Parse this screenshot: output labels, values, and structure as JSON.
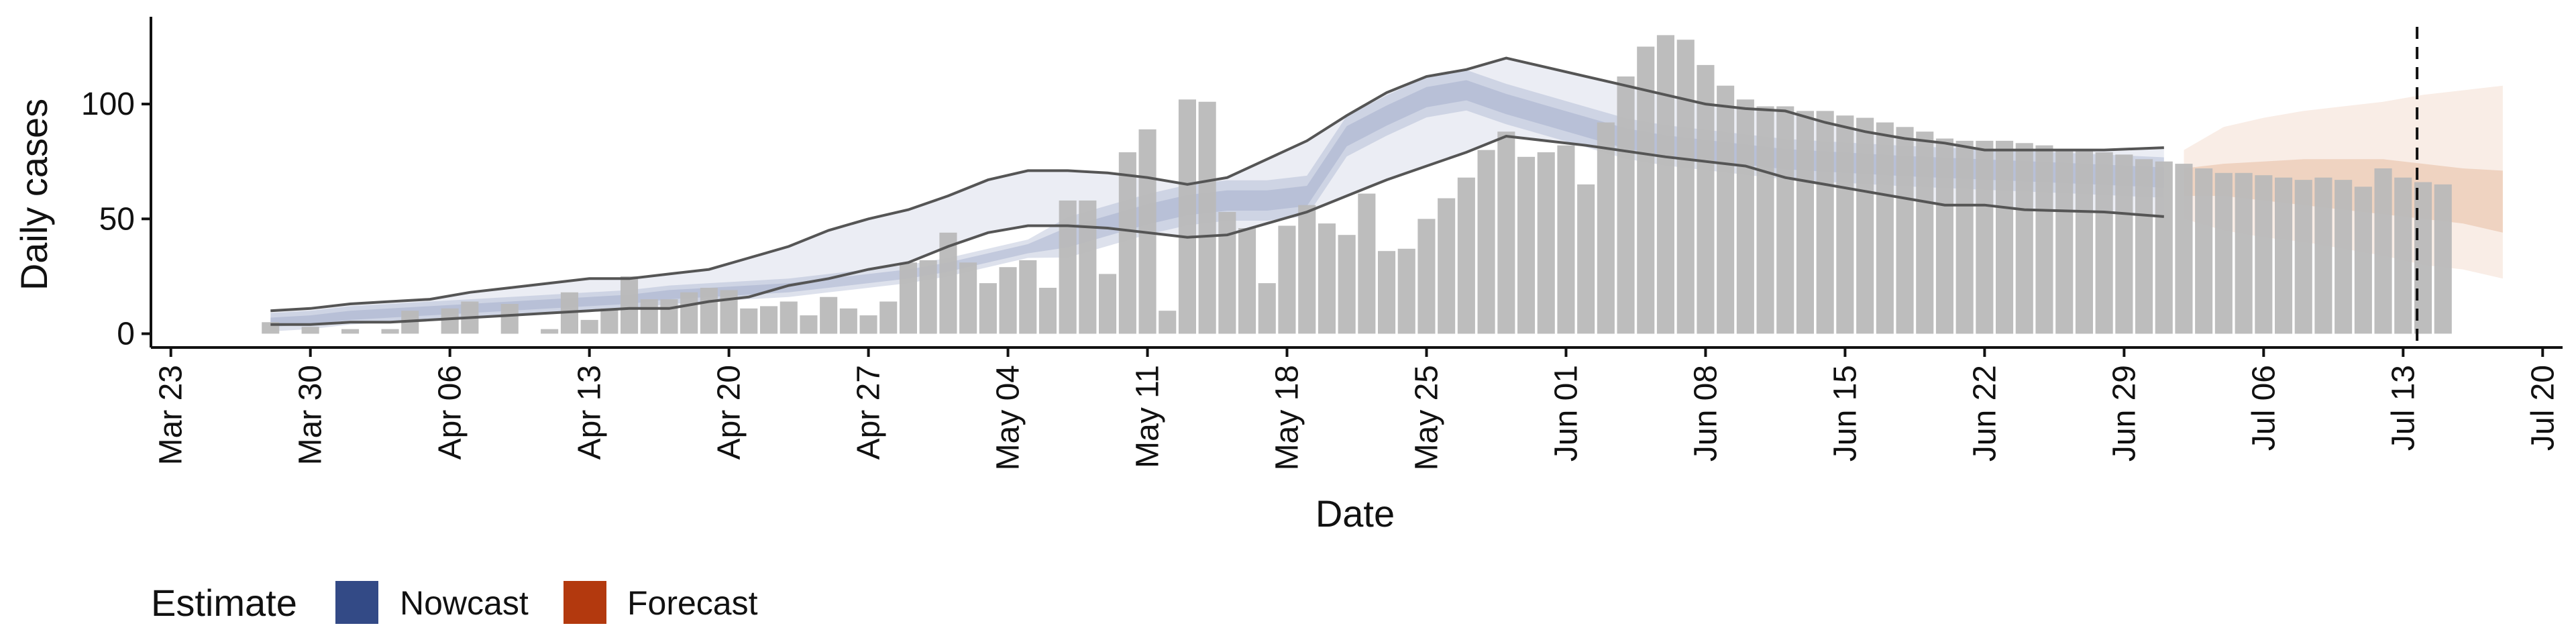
{
  "chart_data": {
    "type": "bar",
    "xlabel": "Date",
    "ylabel": "Daily cases",
    "ylim": [
      -6,
      138
    ],
    "yticks": [
      0,
      50,
      100
    ],
    "x_start_date": "2020-03-23",
    "xlim_days": [
      -1,
      120
    ],
    "x_ticks": [
      {
        "day": 0,
        "label": "Mar 23"
      },
      {
        "day": 7,
        "label": "Mar 30"
      },
      {
        "day": 14,
        "label": "Apr 06"
      },
      {
        "day": 21,
        "label": "Apr 13"
      },
      {
        "day": 28,
        "label": "Apr 20"
      },
      {
        "day": 35,
        "label": "Apr 27"
      },
      {
        "day": 42,
        "label": "May 04"
      },
      {
        "day": 49,
        "label": "May 11"
      },
      {
        "day": 56,
        "label": "May 18"
      },
      {
        "day": 63,
        "label": "May 25"
      },
      {
        "day": 70,
        "label": "Jun 01"
      },
      {
        "day": 77,
        "label": "Jun 08"
      },
      {
        "day": 84,
        "label": "Jun 15"
      },
      {
        "day": 91,
        "label": "Jun 22"
      },
      {
        "day": 98,
        "label": "Jun 29"
      },
      {
        "day": 105,
        "label": "Jul 06"
      },
      {
        "day": 112,
        "label": "Jul 13"
      },
      {
        "day": 119,
        "label": "Jul 20"
      }
    ],
    "bars_first_day": 5,
    "bars": [
      5,
      0,
      3,
      0,
      2,
      0,
      2,
      10,
      0,
      11,
      14,
      0,
      13,
      0,
      2,
      18,
      6,
      11,
      25,
      15,
      15,
      18,
      20,
      19,
      11,
      12,
      14,
      8,
      16,
      11,
      8,
      14,
      31,
      32,
      44,
      31,
      22,
      29,
      32,
      20,
      58,
      58,
      26,
      79,
      89,
      10,
      102,
      101,
      53,
      46,
      22,
      47,
      56,
      48,
      43,
      61,
      36,
      37,
      50,
      59,
      68,
      80,
      88,
      77,
      79,
      82,
      65,
      92,
      112,
      125,
      130,
      128,
      117,
      108,
      102,
      99,
      99,
      97,
      97,
      95,
      94,
      92,
      90,
      88,
      85,
      84,
      84,
      84,
      83,
      82,
      80,
      80,
      79,
      78,
      76,
      75,
      74,
      72,
      70,
      70,
      69,
      68,
      67,
      68,
      67,
      64,
      72,
      68,
      66,
      65
    ],
    "nowcast": {
      "start_day": 5,
      "end_day": 100,
      "median": [
        5,
        6,
        8,
        9,
        10,
        11,
        12,
        13,
        14,
        15,
        17,
        18,
        19,
        20,
        22,
        24,
        26,
        29,
        33,
        37,
        42,
        47,
        52,
        56,
        58,
        58,
        60,
        86,
        95,
        103,
        106,
        100,
        95,
        90,
        85,
        82,
        80,
        78,
        76,
        75,
        74,
        73,
        70,
        68
      ],
      "median_days": [
        5,
        7,
        9,
        11,
        13,
        15,
        17,
        19,
        21,
        23,
        25,
        27,
        29,
        31,
        33,
        35,
        37,
        39,
        41,
        43,
        45,
        47,
        49,
        51,
        53,
        55,
        57,
        59,
        61,
        63,
        65,
        67,
        69,
        71,
        73,
        75,
        77,
        79,
        81,
        83,
        85,
        87,
        95,
        100
      ],
      "inner_halfwidth": 4,
      "outer_upper": [
        10,
        11,
        13,
        14,
        15,
        18,
        20,
        22,
        24,
        24,
        26,
        28,
        33,
        38,
        45,
        50,
        54,
        60,
        67,
        71,
        71,
        70,
        68,
        65,
        68,
        76,
        84,
        95,
        105,
        112,
        115,
        120,
        112,
        104,
        100,
        98,
        97,
        92,
        88,
        85,
        83,
        80,
        80,
        80,
        81
      ],
      "outer_lower": [
        4,
        4,
        5,
        5,
        6,
        7,
        8,
        9,
        10,
        11,
        11,
        14,
        16,
        21,
        24,
        28,
        31,
        38,
        44,
        47,
        47,
        46,
        44,
        42,
        43,
        48,
        53,
        60,
        67,
        73,
        79,
        86,
        82,
        77,
        75,
        73,
        68,
        65,
        62,
        59,
        56,
        56,
        54,
        53,
        51
      ],
      "outer_days": [
        5,
        7,
        9,
        11,
        13,
        15,
        17,
        19,
        21,
        23,
        25,
        27,
        29,
        31,
        33,
        35,
        37,
        39,
        41,
        43,
        45,
        47,
        49,
        51,
        53,
        55,
        57,
        59,
        61,
        63,
        65,
        67,
        71,
        75,
        77,
        79,
        81,
        83,
        85,
        87,
        89,
        91,
        93,
        97,
        100
      ]
    },
    "forecast": {
      "start_day": 101,
      "end_day": 117,
      "median": [
        66,
        67,
        66,
        66,
        65,
        64,
        63,
        62,
        61,
        60
      ],
      "days": [
        101,
        103,
        105,
        107,
        109,
        111,
        113,
        115,
        117,
        117
      ],
      "inner_upper": [
        72,
        74,
        75,
        76,
        76,
        76,
        74,
        72,
        71,
        70
      ],
      "inner_lower": [
        60,
        60,
        58,
        56,
        54,
        52,
        50,
        48,
        44,
        40
      ],
      "outer_upper": [
        80,
        90,
        94,
        97,
        99,
        101,
        104,
        106,
        108,
        108
      ],
      "outer_lower": [
        50,
        45,
        42,
        40,
        37,
        34,
        30,
        28,
        24,
        22
      ]
    },
    "vline_day": 112.7,
    "legend": {
      "title": "Estimate",
      "items": [
        {
          "label": "Nowcast",
          "color": "#334a86"
        },
        {
          "label": "Forecast",
          "color": "#b3390e"
        }
      ],
      "position": "bottom-left"
    },
    "colors": {
      "bar": "#b9b9b9",
      "nowcast": "#8592bb",
      "forecast": "#d98e62",
      "ci_line": "#555555",
      "vline": "#111111"
    }
  }
}
